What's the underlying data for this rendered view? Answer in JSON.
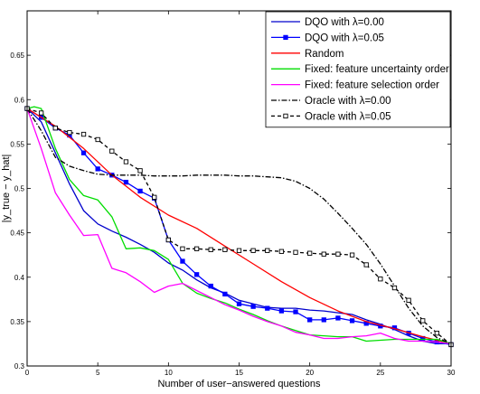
{
  "chart_data": {
    "type": "line",
    "title": "",
    "xlabel": "Number of user−answered questions",
    "ylabel": "|y_true − y_hat|",
    "xlim": [
      0,
      30
    ],
    "ylim": [
      0.3,
      0.7
    ],
    "xticks": [
      0,
      5,
      10,
      15,
      20,
      25,
      30
    ],
    "yticks": [
      0.3,
      0.35,
      0.4,
      0.45,
      0.5,
      0.55,
      0.6,
      0.65
    ],
    "xtick_labels": [
      "0",
      "5",
      "10",
      "15",
      "20",
      "25",
      "30"
    ],
    "ytick_labels": [
      "0.3",
      "0.35",
      "0.4",
      "0.45",
      "0.5",
      "0.55",
      "0.6",
      "0.65"
    ],
    "grid": false,
    "legend_position": "top-right",
    "series": [
      {
        "name": "DQO with λ=0.00",
        "color": "#0000cc",
        "style": "solid",
        "marker": "none",
        "x": [
          0,
          1,
          2,
          3,
          4,
          5,
          6,
          7,
          8,
          9,
          10,
          11,
          12,
          13,
          14,
          15,
          16,
          17,
          18,
          19,
          20,
          21,
          22,
          23,
          24,
          25,
          26,
          27,
          28,
          29,
          30
        ],
        "y": [
          0.59,
          0.575,
          0.54,
          0.505,
          0.475,
          0.46,
          0.452,
          0.445,
          0.437,
          0.428,
          0.416,
          0.408,
          0.397,
          0.388,
          0.382,
          0.374,
          0.37,
          0.366,
          0.365,
          0.365,
          0.363,
          0.362,
          0.36,
          0.358,
          0.352,
          0.347,
          0.341,
          0.334,
          0.328,
          0.325,
          0.325
        ]
      },
      {
        "name": "DQO with λ=0.05",
        "color": "#0000ff",
        "style": "solid",
        "marker": "square-filled",
        "x": [
          0,
          1,
          2,
          3,
          4,
          5,
          6,
          7,
          8,
          9,
          10,
          11,
          12,
          13,
          14,
          15,
          16,
          17,
          18,
          19,
          20,
          21,
          22,
          23,
          24,
          25,
          26,
          27,
          28,
          29,
          30
        ],
        "y": [
          0.59,
          0.58,
          0.568,
          0.56,
          0.54,
          0.522,
          0.515,
          0.507,
          0.497,
          0.489,
          0.442,
          0.418,
          0.403,
          0.39,
          0.381,
          0.37,
          0.367,
          0.365,
          0.362,
          0.361,
          0.352,
          0.352,
          0.354,
          0.351,
          0.348,
          0.345,
          0.343,
          0.337,
          0.331,
          0.327,
          0.324
        ]
      },
      {
        "name": "Random",
        "color": "#ff0000",
        "style": "solid",
        "marker": "none",
        "x": [
          0,
          2,
          4,
          6,
          8,
          10,
          12,
          14,
          16,
          18,
          20,
          22,
          24,
          26,
          28,
          30
        ],
        "y": [
          0.59,
          0.57,
          0.545,
          0.515,
          0.49,
          0.47,
          0.455,
          0.435,
          0.415,
          0.395,
          0.377,
          0.362,
          0.35,
          0.342,
          0.333,
          0.325
        ]
      },
      {
        "name": "Fixed: feature uncertainty order",
        "color": "#00dd00",
        "style": "solid",
        "marker": "none",
        "x": [
          0,
          0.5,
          1,
          2,
          3,
          4,
          5,
          6,
          7,
          8,
          9,
          10,
          11,
          12,
          13,
          14,
          15,
          16,
          17,
          18,
          19,
          20,
          21,
          22,
          23,
          24,
          25,
          26,
          27,
          28,
          29,
          30
        ],
        "y": [
          0.59,
          0.592,
          0.59,
          0.545,
          0.51,
          0.492,
          0.487,
          0.468,
          0.432,
          0.433,
          0.43,
          0.42,
          0.393,
          0.382,
          0.376,
          0.371,
          0.364,
          0.358,
          0.351,
          0.345,
          0.34,
          0.335,
          0.334,
          0.333,
          0.333,
          0.328,
          0.329,
          0.33,
          0.33,
          0.33,
          0.33,
          0.325
        ]
      },
      {
        "name": "Fixed: feature selection order",
        "color": "#ff00ff",
        "style": "solid",
        "marker": "none",
        "x": [
          0,
          1,
          2,
          3,
          4,
          5,
          6,
          7,
          8,
          9,
          10,
          11,
          12,
          13,
          14,
          15,
          16,
          17,
          18,
          19,
          20,
          21,
          22,
          23,
          24,
          25,
          26,
          27,
          28,
          29,
          30
        ],
        "y": [
          0.59,
          0.545,
          0.495,
          0.47,
          0.447,
          0.448,
          0.41,
          0.405,
          0.395,
          0.383,
          0.39,
          0.393,
          0.385,
          0.377,
          0.369,
          0.363,
          0.356,
          0.35,
          0.345,
          0.338,
          0.335,
          0.331,
          0.331,
          0.333,
          0.334,
          0.337,
          0.331,
          0.328,
          0.328,
          0.327,
          0.325
        ]
      },
      {
        "name": "Oracle with λ=0.00",
        "color": "#000000",
        "style": "dashdot",
        "marker": "none",
        "x": [
          0,
          1,
          2,
          3,
          4,
          5,
          6,
          7,
          8,
          9,
          10,
          11,
          12,
          13,
          14,
          15,
          16,
          17,
          18,
          19,
          20,
          21,
          22,
          23,
          24,
          25,
          26,
          27,
          28,
          29,
          30
        ],
        "y": [
          0.59,
          0.565,
          0.535,
          0.525,
          0.52,
          0.516,
          0.515,
          0.515,
          0.515,
          0.514,
          0.514,
          0.514,
          0.515,
          0.515,
          0.515,
          0.514,
          0.514,
          0.513,
          0.512,
          0.508,
          0.5,
          0.488,
          0.472,
          0.455,
          0.437,
          0.415,
          0.39,
          0.365,
          0.345,
          0.332,
          0.325
        ]
      },
      {
        "name": "Oracle with λ=0.05",
        "color": "#000000",
        "style": "dashed",
        "marker": "square-open",
        "x": [
          0,
          1,
          2,
          3,
          4,
          5,
          6,
          7,
          8,
          9,
          10,
          11,
          12,
          13,
          14,
          15,
          16,
          17,
          18,
          19,
          20,
          21,
          22,
          23,
          24,
          25,
          26,
          27,
          28,
          29,
          30
        ],
        "y": [
          0.59,
          0.585,
          0.568,
          0.563,
          0.561,
          0.555,
          0.542,
          0.53,
          0.52,
          0.49,
          0.442,
          0.432,
          0.432,
          0.431,
          0.431,
          0.43,
          0.43,
          0.43,
          0.429,
          0.428,
          0.427,
          0.426,
          0.426,
          0.425,
          0.414,
          0.398,
          0.388,
          0.374,
          0.351,
          0.337,
          0.324
        ]
      }
    ]
  }
}
